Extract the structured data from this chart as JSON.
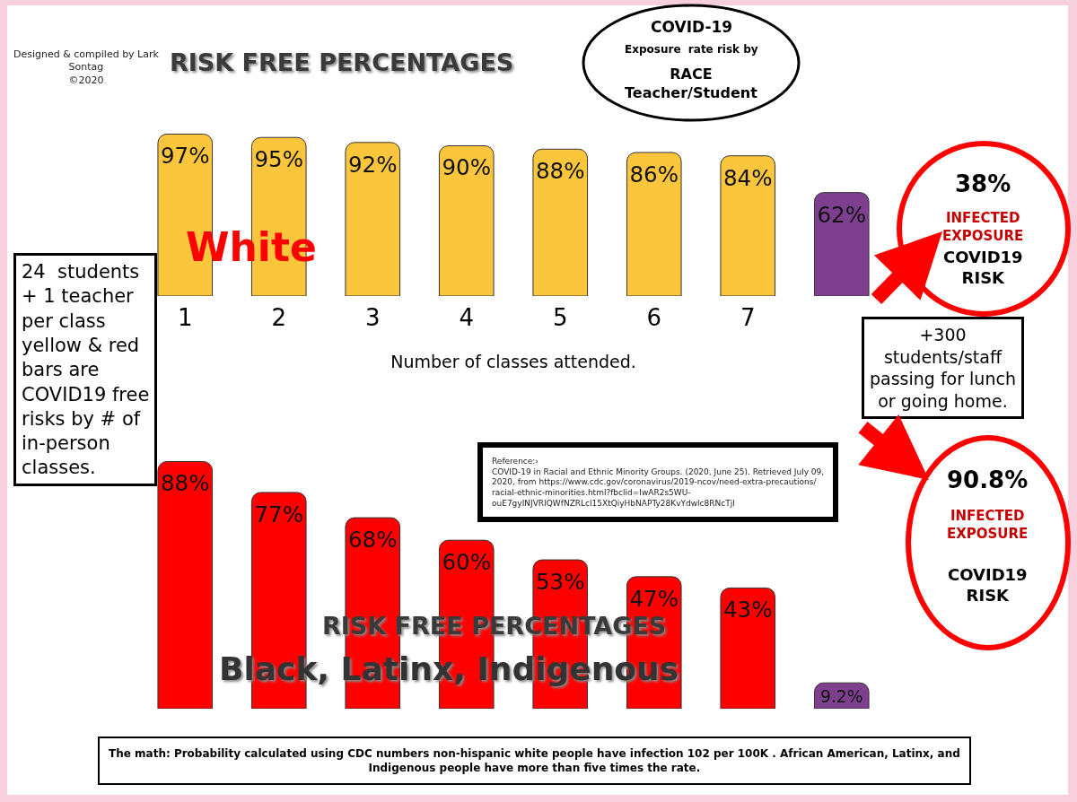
{
  "chart_data": [
    {
      "type": "bar",
      "categories": [
        "1",
        "2",
        "3",
        "4",
        "5",
        "6",
        "7",
        null
      ],
      "values": [
        97,
        95,
        92,
        90,
        88,
        86,
        84,
        62
      ],
      "colors": [
        "#fcc63c",
        "#fcc63c",
        "#fcc63c",
        "#fcc63c",
        "#fcc63c",
        "#fcc63c",
        "#fcc63c",
        "#7d3f8e"
      ],
      "value_labels": [
        "97%",
        "95%",
        "92%",
        "90%",
        "88%",
        "86%",
        "84%",
        "62%"
      ],
      "tick_labels": "x",
      "xlabel": "Number of classes attended.",
      "annotations": [
        "Designed & compiled by Lark\nSontag\n©2020",
        "RISK FREE PERCENTAGES",
        "White",
        "COVID-19",
        "Exposure  rate risk by",
        "RACE\nTeacher/Student",
        "38%",
        "INFECTED\nEXPOSURE",
        "COVID19\nRISK",
        "+300\nstudents/staff\npassing for lunch\nor going home.",
        "24  students\n+ 1 teacher\nper class\nyellow & red\nbars are\nCOVID19 free\nrisks by # of\nin-person\nclasses."
      ]
    },
    {
      "type": "bar",
      "categories": [
        "1",
        "2",
        "3",
        "4",
        "5",
        "6",
        "7",
        null
      ],
      "values": [
        88,
        77,
        68,
        60,
        53,
        47,
        43,
        9.2
      ],
      "colors": [
        "#ff0000",
        "#ff0000",
        "#ff0000",
        "#ff0000",
        "#ff0000",
        "#ff0000",
        "#ff0000",
        "#7d3f8e"
      ],
      "value_labels": [
        "88%",
        "77%",
        "68%",
        "60%",
        "53%",
        "47%",
        "43%",
        "9.2%"
      ],
      "tick_labels": false,
      "annotations": [
        "RISK FREE PERCENTAGES",
        "Black, Latinx, Indigenous",
        "90.8%",
        "INFECTED\nEXPOSURE",
        "COVID19\nRISK",
        "Reference:›\nCOVID-19 in Racial and Ethnic Minority Groups. (2020, June 25). Retrieved July 09,\n2020, from https://www.cdc.gov/coronavirus/2019-ncov/need-extra-precautions/\nracial-ethnic-minorities.html?fbclid=IwAR2s5WU-\nouE7gyINJVRIQWfNZRLcl15XtQiyHbNAPTy28KvYdwlc8RNcTjl",
        "The math: Probability calculated using CDC numbers non-hispanic white people have infection 102 per 100K . African American, Latinx, and\nIndigenous people have more than five times the rate."
      ]
    }
  ]
}
